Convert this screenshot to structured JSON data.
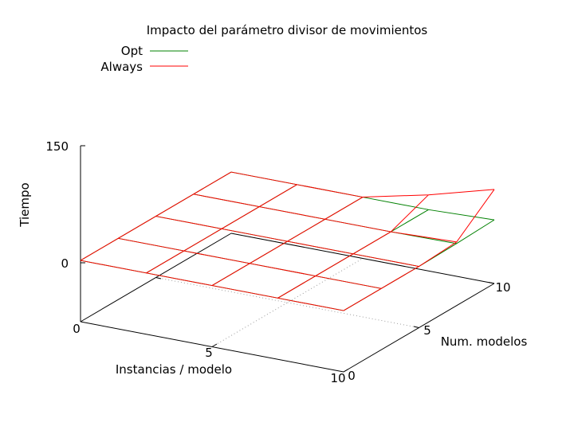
{
  "chart_data": {
    "type": "surface3d",
    "title": "Impacto del parámetro divisor de movimientos",
    "xlabel": "Instancias / modelo",
    "ylabel": "Num. modelos",
    "zlabel": "Tiempo",
    "x_ticks": [
      "0",
      "5",
      "10"
    ],
    "y_ticks": [
      "0",
      "5",
      "10"
    ],
    "z_ticks": [
      "150",
      "0"
    ],
    "xlim": [
      0,
      10
    ],
    "ylim": [
      0,
      10
    ],
    "zlim": [
      -150,
      150
    ],
    "grid": false,
    "legend_position": "top-left",
    "x_grid": [
      0,
      2.5,
      5,
      7.5,
      10
    ],
    "y_grid": [
      0,
      2.5,
      5,
      7.5,
      10
    ],
    "series": [
      {
        "name": "Opt",
        "color": "#008000",
        "z": [
          [
            3,
            3,
            3,
            3,
            3
          ],
          [
            3,
            3,
            3,
            3,
            3
          ],
          [
            3,
            3,
            3,
            3,
            3
          ],
          [
            3,
            3,
            3,
            3,
            3
          ],
          [
            3,
            3,
            3,
            4,
            6
          ]
        ]
      },
      {
        "name": "Always",
        "color": "#ff0000",
        "z": [
          [
            3,
            3,
            3,
            3,
            3
          ],
          [
            3,
            3,
            3,
            3,
            3
          ],
          [
            3,
            3,
            3,
            3,
            3
          ],
          [
            3,
            3,
            3,
            3,
            22
          ],
          [
            3,
            3,
            3,
            6,
            45
          ]
        ]
      }
    ]
  }
}
